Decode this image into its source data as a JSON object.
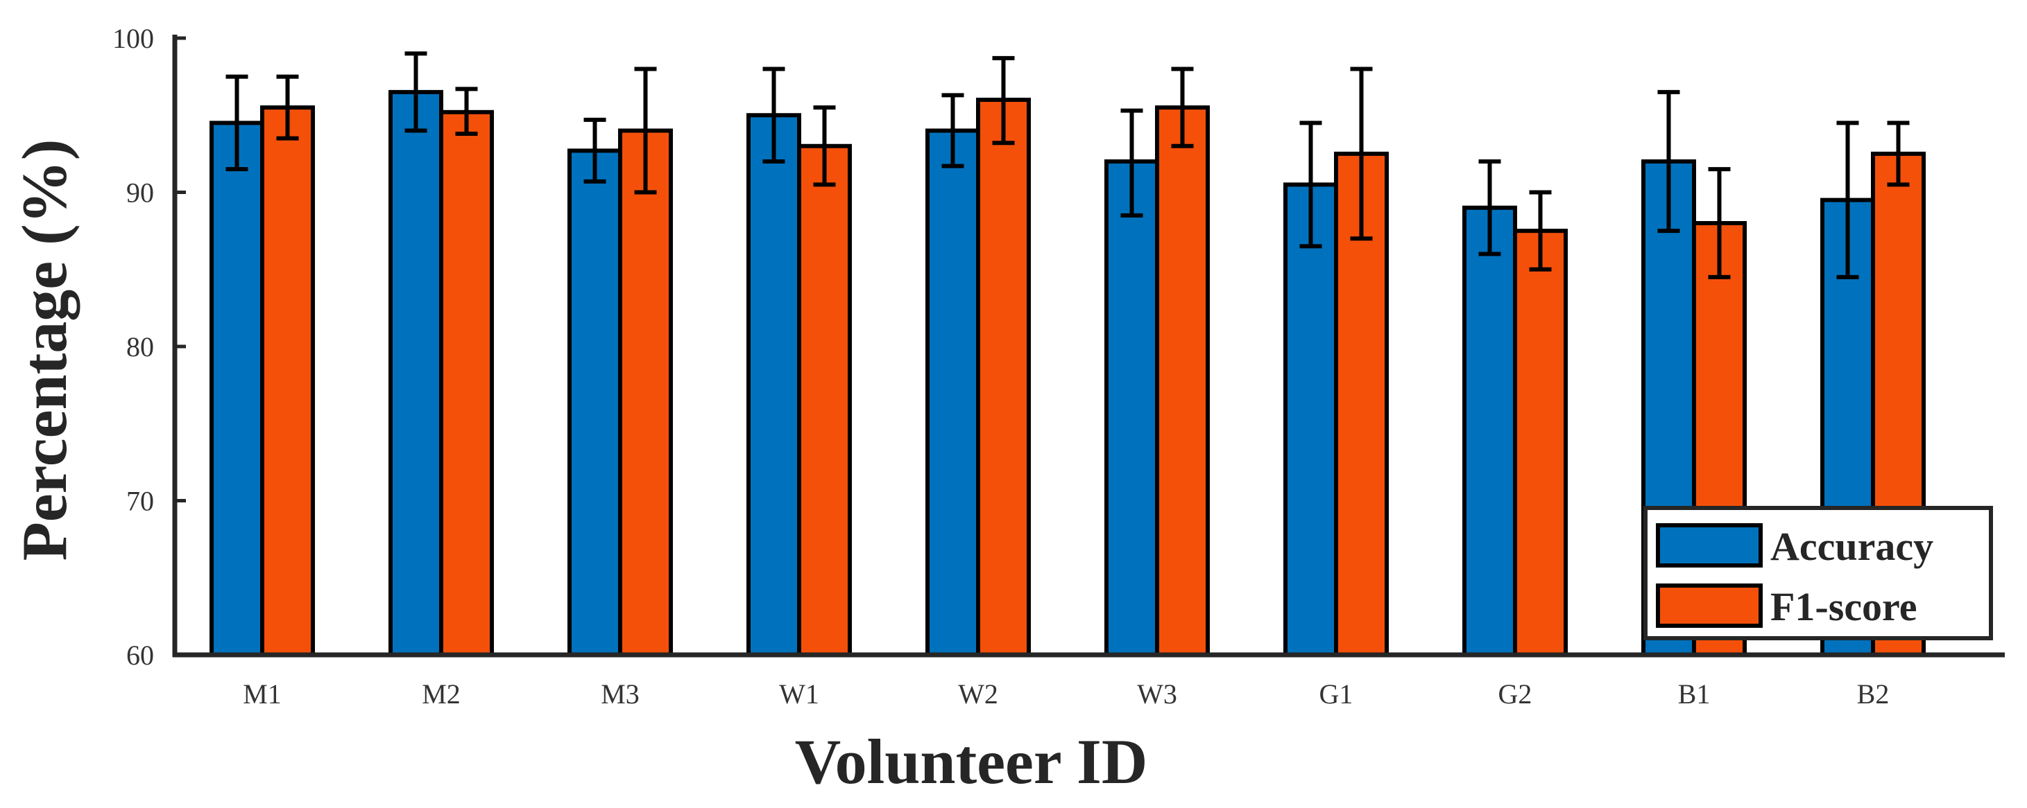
{
  "chart_data": {
    "type": "bar",
    "title": "",
    "xlabel": "Volunteer ID",
    "ylabel": "Percentage (%)",
    "ylim": [
      60,
      100
    ],
    "yticks": [
      60,
      70,
      80,
      90,
      100
    ],
    "categories": [
      "M1",
      "M2",
      "M3",
      "W1",
      "W2",
      "W3",
      "G1",
      "G2",
      "B1",
      "B2"
    ],
    "series": [
      {
        "name": "Accuracy",
        "color": "#0072BD",
        "values": [
          94.5,
          96.5,
          92.7,
          95.0,
          94.0,
          92.0,
          90.5,
          89.0,
          92.0,
          89.5
        ],
        "error_low": [
          91.5,
          94.0,
          90.7,
          92.0,
          91.7,
          88.5,
          86.5,
          86.0,
          87.5,
          84.5
        ],
        "error_high": [
          97.5,
          99.0,
          94.7,
          98.0,
          96.3,
          95.3,
          94.5,
          92.0,
          96.5,
          94.5
        ]
      },
      {
        "name": "F1-score",
        "color": "#F4500A",
        "values": [
          95.5,
          95.2,
          94.0,
          93.0,
          96.0,
          95.5,
          92.5,
          87.5,
          88.0,
          92.5
        ],
        "error_low": [
          93.5,
          93.8,
          90.0,
          90.5,
          93.2,
          93.0,
          87.0,
          85.0,
          84.5,
          90.5
        ],
        "error_high": [
          97.5,
          96.7,
          98.0,
          95.5,
          98.7,
          98.0,
          98.0,
          90.0,
          91.5,
          94.5
        ]
      }
    ],
    "legend": {
      "position": "bottom-right",
      "entries": [
        "Accuracy",
        "F1-score"
      ]
    },
    "grid": false
  }
}
